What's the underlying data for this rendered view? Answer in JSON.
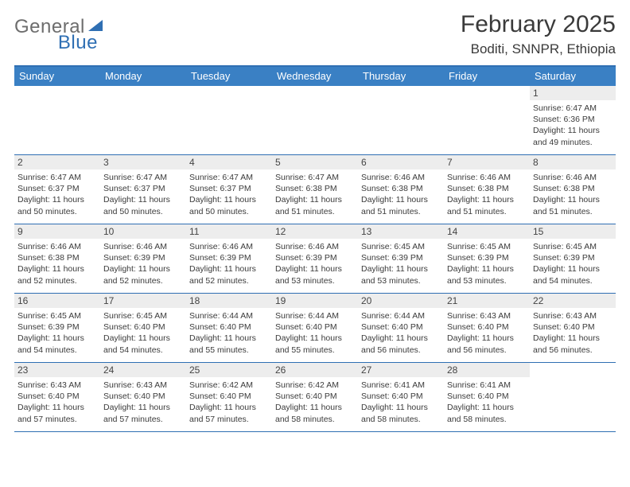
{
  "logo": {
    "word1": "General",
    "word2": "Blue"
  },
  "title": "February 2025",
  "location": "Boditi, SNNPR, Ethiopia",
  "colors": {
    "header_bg": "#3a80c4",
    "border": "#2f6fb3",
    "daynum_bg": "#ededed",
    "text": "#3a3a3a",
    "logo_gray": "#6d6d6d",
    "logo_blue": "#2f6fb3"
  },
  "day_headers": [
    "Sunday",
    "Monday",
    "Tuesday",
    "Wednesday",
    "Thursday",
    "Friday",
    "Saturday"
  ],
  "weeks": [
    [
      {
        "n": "",
        "sr": "",
        "ss": "",
        "dl": ""
      },
      {
        "n": "",
        "sr": "",
        "ss": "",
        "dl": ""
      },
      {
        "n": "",
        "sr": "",
        "ss": "",
        "dl": ""
      },
      {
        "n": "",
        "sr": "",
        "ss": "",
        "dl": ""
      },
      {
        "n": "",
        "sr": "",
        "ss": "",
        "dl": ""
      },
      {
        "n": "",
        "sr": "",
        "ss": "",
        "dl": ""
      },
      {
        "n": "1",
        "sr": "Sunrise: 6:47 AM",
        "ss": "Sunset: 6:36 PM",
        "dl": "Daylight: 11 hours and 49 minutes."
      }
    ],
    [
      {
        "n": "2",
        "sr": "Sunrise: 6:47 AM",
        "ss": "Sunset: 6:37 PM",
        "dl": "Daylight: 11 hours and 50 minutes."
      },
      {
        "n": "3",
        "sr": "Sunrise: 6:47 AM",
        "ss": "Sunset: 6:37 PM",
        "dl": "Daylight: 11 hours and 50 minutes."
      },
      {
        "n": "4",
        "sr": "Sunrise: 6:47 AM",
        "ss": "Sunset: 6:37 PM",
        "dl": "Daylight: 11 hours and 50 minutes."
      },
      {
        "n": "5",
        "sr": "Sunrise: 6:47 AM",
        "ss": "Sunset: 6:38 PM",
        "dl": "Daylight: 11 hours and 51 minutes."
      },
      {
        "n": "6",
        "sr": "Sunrise: 6:46 AM",
        "ss": "Sunset: 6:38 PM",
        "dl": "Daylight: 11 hours and 51 minutes."
      },
      {
        "n": "7",
        "sr": "Sunrise: 6:46 AM",
        "ss": "Sunset: 6:38 PM",
        "dl": "Daylight: 11 hours and 51 minutes."
      },
      {
        "n": "8",
        "sr": "Sunrise: 6:46 AM",
        "ss": "Sunset: 6:38 PM",
        "dl": "Daylight: 11 hours and 51 minutes."
      }
    ],
    [
      {
        "n": "9",
        "sr": "Sunrise: 6:46 AM",
        "ss": "Sunset: 6:38 PM",
        "dl": "Daylight: 11 hours and 52 minutes."
      },
      {
        "n": "10",
        "sr": "Sunrise: 6:46 AM",
        "ss": "Sunset: 6:39 PM",
        "dl": "Daylight: 11 hours and 52 minutes."
      },
      {
        "n": "11",
        "sr": "Sunrise: 6:46 AM",
        "ss": "Sunset: 6:39 PM",
        "dl": "Daylight: 11 hours and 52 minutes."
      },
      {
        "n": "12",
        "sr": "Sunrise: 6:46 AM",
        "ss": "Sunset: 6:39 PM",
        "dl": "Daylight: 11 hours and 53 minutes."
      },
      {
        "n": "13",
        "sr": "Sunrise: 6:45 AM",
        "ss": "Sunset: 6:39 PM",
        "dl": "Daylight: 11 hours and 53 minutes."
      },
      {
        "n": "14",
        "sr": "Sunrise: 6:45 AM",
        "ss": "Sunset: 6:39 PM",
        "dl": "Daylight: 11 hours and 53 minutes."
      },
      {
        "n": "15",
        "sr": "Sunrise: 6:45 AM",
        "ss": "Sunset: 6:39 PM",
        "dl": "Daylight: 11 hours and 54 minutes."
      }
    ],
    [
      {
        "n": "16",
        "sr": "Sunrise: 6:45 AM",
        "ss": "Sunset: 6:39 PM",
        "dl": "Daylight: 11 hours and 54 minutes."
      },
      {
        "n": "17",
        "sr": "Sunrise: 6:45 AM",
        "ss": "Sunset: 6:40 PM",
        "dl": "Daylight: 11 hours and 54 minutes."
      },
      {
        "n": "18",
        "sr": "Sunrise: 6:44 AM",
        "ss": "Sunset: 6:40 PM",
        "dl": "Daylight: 11 hours and 55 minutes."
      },
      {
        "n": "19",
        "sr": "Sunrise: 6:44 AM",
        "ss": "Sunset: 6:40 PM",
        "dl": "Daylight: 11 hours and 55 minutes."
      },
      {
        "n": "20",
        "sr": "Sunrise: 6:44 AM",
        "ss": "Sunset: 6:40 PM",
        "dl": "Daylight: 11 hours and 56 minutes."
      },
      {
        "n": "21",
        "sr": "Sunrise: 6:43 AM",
        "ss": "Sunset: 6:40 PM",
        "dl": "Daylight: 11 hours and 56 minutes."
      },
      {
        "n": "22",
        "sr": "Sunrise: 6:43 AM",
        "ss": "Sunset: 6:40 PM",
        "dl": "Daylight: 11 hours and 56 minutes."
      }
    ],
    [
      {
        "n": "23",
        "sr": "Sunrise: 6:43 AM",
        "ss": "Sunset: 6:40 PM",
        "dl": "Daylight: 11 hours and 57 minutes."
      },
      {
        "n": "24",
        "sr": "Sunrise: 6:43 AM",
        "ss": "Sunset: 6:40 PM",
        "dl": "Daylight: 11 hours and 57 minutes."
      },
      {
        "n": "25",
        "sr": "Sunrise: 6:42 AM",
        "ss": "Sunset: 6:40 PM",
        "dl": "Daylight: 11 hours and 57 minutes."
      },
      {
        "n": "26",
        "sr": "Sunrise: 6:42 AM",
        "ss": "Sunset: 6:40 PM",
        "dl": "Daylight: 11 hours and 58 minutes."
      },
      {
        "n": "27",
        "sr": "Sunrise: 6:41 AM",
        "ss": "Sunset: 6:40 PM",
        "dl": "Daylight: 11 hours and 58 minutes."
      },
      {
        "n": "28",
        "sr": "Sunrise: 6:41 AM",
        "ss": "Sunset: 6:40 PM",
        "dl": "Daylight: 11 hours and 58 minutes."
      },
      {
        "n": "",
        "sr": "",
        "ss": "",
        "dl": ""
      }
    ]
  ]
}
